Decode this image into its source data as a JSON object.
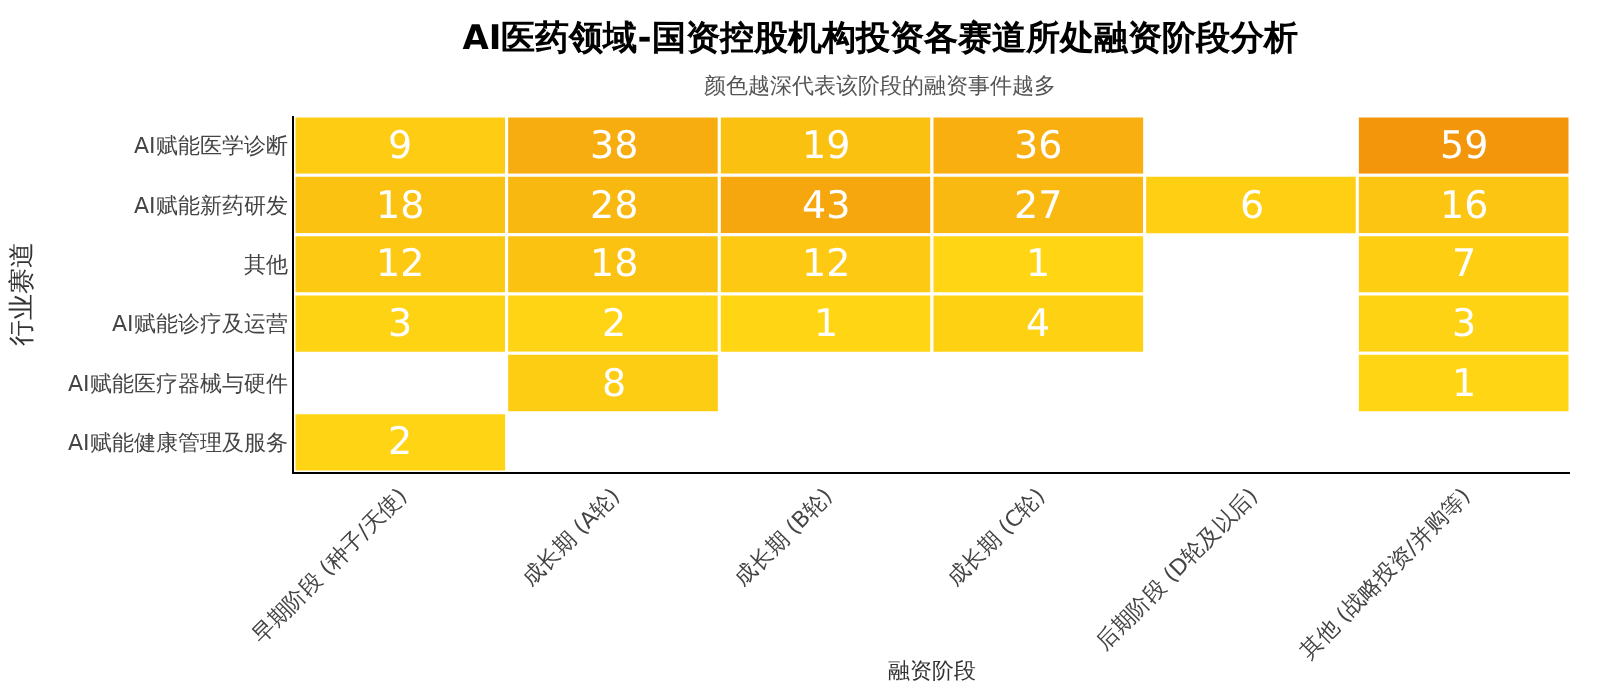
{
  "chart_data": {
    "type": "heatmap",
    "title": "AI医药领域-国资控股机构投资各赛道所处融资阶段分析",
    "subtitle": "颜色越深代表该阶段的融资事件越多",
    "xlabel": "融资阶段",
    "ylabel": "行业赛道",
    "categories": [
      "早期阶段 (种子/天使)",
      "成长期 (A轮)",
      "成长期 (B轮)",
      "成长期 (C轮)",
      "后期阶段 (D轮及以后)",
      "其他 (战略投资/并购等)"
    ],
    "y_categories": [
      "AI赋能医学诊断",
      "AI赋能新药研发",
      "其他",
      "AI赋能诊疗及运营",
      "AI赋能医疗器械与硬件",
      "AI赋能健康管理及服务"
    ],
    "cells": [
      [
        9,
        38,
        19,
        36,
        null,
        59
      ],
      [
        18,
        28,
        43,
        27,
        6,
        16
      ],
      [
        12,
        18,
        12,
        1,
        null,
        7
      ],
      [
        3,
        2,
        1,
        4,
        null,
        3
      ],
      [
        null,
        8,
        null,
        null,
        null,
        1
      ],
      [
        2,
        null,
        null,
        null,
        null,
        null
      ]
    ],
    "data_labels": true
  }
}
